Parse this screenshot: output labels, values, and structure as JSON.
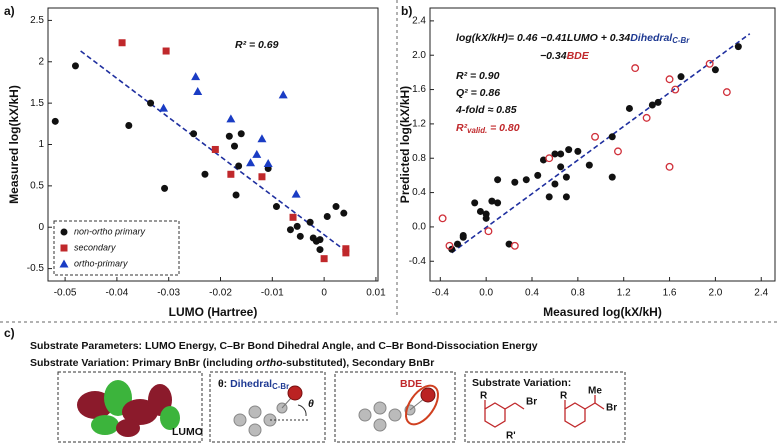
{
  "chart_data": [
    {
      "type": "scatter",
      "label": "a)",
      "xlabel": "LUMO (Hartree)",
      "ylabel": "Measured log(kX/kH)",
      "xlim": [
        -0.0533,
        0.0104
      ],
      "xticks": [
        -0.05,
        -0.04,
        -0.03,
        -0.02,
        -0.01,
        0,
        0.01
      ],
      "ylim": [
        -0.65,
        2.65
      ],
      "yticks": [
        -0.5,
        0,
        0.5,
        1,
        1.5,
        2,
        2.5
      ],
      "grid": false,
      "legend": "lower left",
      "series": [
        {
          "name": "non-ortho primary",
          "color": "#111111",
          "marker": "circle",
          "x": [
            -0.0519,
            -0.048,
            -0.0377,
            -0.0335,
            -0.0308,
            -0.0252,
            -0.023,
            -0.0183,
            -0.0173,
            -0.0165,
            -0.016,
            -0.017,
            -0.0108,
            -0.0092,
            -0.0065,
            -0.0052,
            -0.0046,
            -0.0027,
            -0.0021,
            -0.0015,
            -0.0008,
            0.0006,
            0.0023,
            0.0038,
            -0.0008
          ],
          "values": [
            1.28,
            1.95,
            1.23,
            1.5,
            0.47,
            1.13,
            0.64,
            1.1,
            0.98,
            0.74,
            1.13,
            0.39,
            0.71,
            0.25,
            -0.03,
            0.01,
            -0.11,
            0.06,
            -0.13,
            -0.17,
            -0.15,
            0.13,
            0.25,
            0.17,
            -0.27
          ]
        },
        {
          "name": "secondary",
          "color": "#c0282b",
          "marker": "square",
          "x": [
            -0.039,
            -0.0305,
            -0.021,
            -0.018,
            -0.012,
            -0.006,
            0.0,
            0.0042,
            0.0042
          ],
          "values": [
            2.23,
            2.13,
            0.94,
            0.64,
            0.61,
            0.12,
            -0.38,
            -0.31,
            -0.26
          ]
        },
        {
          "name": "ortho-primary",
          "color": "#1a3cc4",
          "marker": "triangle",
          "x": [
            -0.031,
            -0.0248,
            -0.0244,
            -0.018,
            -0.013,
            -0.012,
            -0.0142,
            -0.0108,
            -0.0079,
            -0.0054
          ],
          "values": [
            1.44,
            1.82,
            1.64,
            1.31,
            0.88,
            1.07,
            0.78,
            0.77,
            1.6,
            0.4
          ]
        }
      ],
      "trendline": {
        "color": "#1f2f9f",
        "x": [
          -0.047,
          0.004
        ],
        "y": [
          2.13,
          -0.28
        ]
      },
      "annotations": [
        [
          {
            "text": "R² = 0.69"
          }
        ]
      ]
    },
    {
      "type": "scatter",
      "label": "b)",
      "xlabel": "Measured log(kX/kH)",
      "ylabel": "Predicted log(kX/kH)",
      "xlim": [
        -0.49,
        2.52
      ],
      "xticks": [
        -0.4,
        {
          "value": 0,
          "label": "0.0"
        },
        0.4,
        0.8,
        1.2,
        1.6,
        {
          "value": 2,
          "label": "2.0"
        },
        2.4
      ],
      "ylim": [
        -0.63,
        2.55
      ],
      "yticks": [
        -0.4,
        {
          "value": 0,
          "label": "0.0"
        },
        0.4,
        0.8,
        1.2,
        1.6,
        {
          "value": 2,
          "label": "2.0"
        },
        2.4
      ],
      "grid": false,
      "series": [
        {
          "color": "#111111",
          "marker": "circle",
          "x": [
            -0.3,
            -0.25,
            -0.2,
            -0.2,
            -0.1,
            -0.05,
            0.0,
            0.0,
            0.05,
            0.1,
            0.1,
            0.2,
            0.25,
            0.35,
            0.45,
            0.5,
            0.55,
            0.6,
            0.6,
            0.65,
            0.65,
            0.7,
            0.7,
            0.72,
            0.8,
            0.9,
            1.1,
            1.1,
            1.25,
            1.45,
            1.5,
            1.7,
            2.0,
            2.2
          ],
          "values": [
            -0.26,
            -0.2,
            -0.12,
            -0.1,
            0.28,
            0.18,
            0.15,
            0.1,
            0.3,
            0.55,
            0.28,
            -0.2,
            0.52,
            0.55,
            0.6,
            0.78,
            0.35,
            0.5,
            0.85,
            0.7,
            0.85,
            0.35,
            0.58,
            0.9,
            0.88,
            0.72,
            0.58,
            1.05,
            1.38,
            1.42,
            1.45,
            1.75,
            1.83,
            2.1
          ]
        },
        {
          "color": "#d0303a",
          "marker": "open-circle",
          "x": [
            -0.38,
            -0.32,
            0.02,
            0.25,
            0.55,
            0.95,
            1.15,
            1.3,
            1.4,
            1.6,
            1.6,
            1.65,
            1.95,
            2.1
          ],
          "values": [
            0.1,
            -0.22,
            -0.05,
            -0.22,
            0.8,
            1.05,
            0.88,
            1.85,
            1.27,
            0.7,
            1.72,
            1.6,
            1.9,
            1.57
          ]
        }
      ],
      "trendline": {
        "color": "#1f2f9f",
        "x": [
          -0.3,
          2.3
        ],
        "y": [
          -0.3,
          2.25
        ]
      },
      "annotations": [
        [
          {
            "text": "log(kX/kH)= 0.46 −0.41LUMO + 0.34"
          },
          {
            "text": "Dihedral",
            "color": "#1f3a93"
          },
          {
            "text": "C-Br",
            "color": "#1f3a93",
            "sub": true
          }
        ],
        [
          {
            "text": "−0.34"
          },
          {
            "text": "BDE",
            "color": "#c0282b"
          }
        ],
        [
          {
            "text": "R² = 0.90"
          }
        ],
        [
          {
            "text": "Q² = 0.86"
          }
        ],
        [
          {
            "text": "4-fold ≈ 0.85"
          }
        ],
        [
          {
            "text": "R²",
            "color": "#c0282b"
          },
          {
            "text": "valid.",
            "color": "#c0282b",
            "sub": true
          },
          {
            "text": " = 0.80",
            "color": "#c0282b"
          }
        ]
      ]
    }
  ],
  "panel_c": {
    "label": "c)",
    "lines": [
      [
        {
          "text": "Substrate Parameters: LUMO Energy, C–Br Bond Dihedral Angle, and C–Br Bond-Dissociation Energy"
        }
      ],
      [
        {
          "text": "Substrate Variation: Primary BnBr (including "
        },
        {
          "text": "ortho",
          "italic": true
        },
        {
          "text": "-substituted), Secondary BnBr"
        }
      ]
    ],
    "lumo_label": [
      {
        "text": "LUMO"
      }
    ],
    "dihedral_label": [
      {
        "text": "θ: "
      },
      {
        "text": "Dihedral",
        "color": "#1f3a93"
      },
      {
        "text": "C-Br",
        "color": "#1f3a93",
        "sub": true
      }
    ],
    "theta": [
      {
        "text": "θ",
        "italic": true
      }
    ],
    "bde_label": [
      {
        "text": "BDE",
        "color": "#c0282b"
      }
    ],
    "variation_title": [
      {
        "text": "Substrate Variation:"
      }
    ],
    "structure_labels": [
      "R",
      "Br",
      "R'",
      "R",
      "Me",
      "Br"
    ]
  }
}
